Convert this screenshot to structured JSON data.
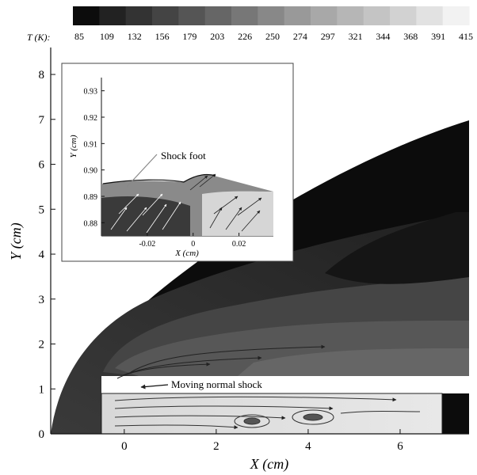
{
  "chart_data": {
    "type": "heatmap",
    "title": "",
    "xlabel": "X (cm)",
    "ylabel": "Y (cm)",
    "xlim": [
      -1.6,
      7.5
    ],
    "ylim": [
      0,
      8.6
    ],
    "x_ticks": [
      0,
      2,
      4,
      6
    ],
    "y_ticks": [
      0,
      1,
      2,
      3,
      4,
      5,
      6,
      7,
      8
    ],
    "colorbar": {
      "label": "T (K):",
      "values": [
        85,
        109,
        132,
        156,
        179,
        203,
        226,
        250,
        274,
        297,
        321,
        344,
        368,
        391,
        415
      ],
      "colors": [
        "#0c0c0c",
        "#222222",
        "#333333",
        "#444444",
        "#555555",
        "#666666",
        "#777777",
        "#888888",
        "#999999",
        "#a8a8a8",
        "#b6b6b6",
        "#c4c4c4",
        "#d2d2d2",
        "#e2e2e2",
        "#f2f2f2"
      ]
    },
    "annotations": [
      {
        "text": "Moving normal shock",
        "x": 0.0,
        "y": 1.0
      },
      {
        "text": "Shock foot",
        "x": -0.035,
        "y": 0.891
      }
    ],
    "inset": {
      "xlabel": "X (cm)",
      "ylabel": "Y (cm)",
      "xlim": [
        -0.04,
        0.035
      ],
      "ylim": [
        0.875,
        0.935
      ],
      "x_ticks": [
        -0.02,
        0,
        0.02
      ],
      "y_ticks": [
        0.88,
        0.89,
        0.9,
        0.91,
        0.92,
        0.93
      ]
    }
  }
}
